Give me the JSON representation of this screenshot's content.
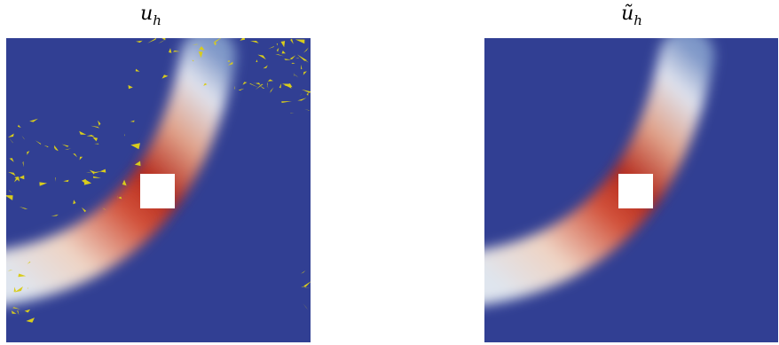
{
  "panels": [
    {
      "symbol": "u",
      "subscript": "h"
    },
    {
      "symbol": "ũ",
      "subscript": "h"
    }
  ]
}
